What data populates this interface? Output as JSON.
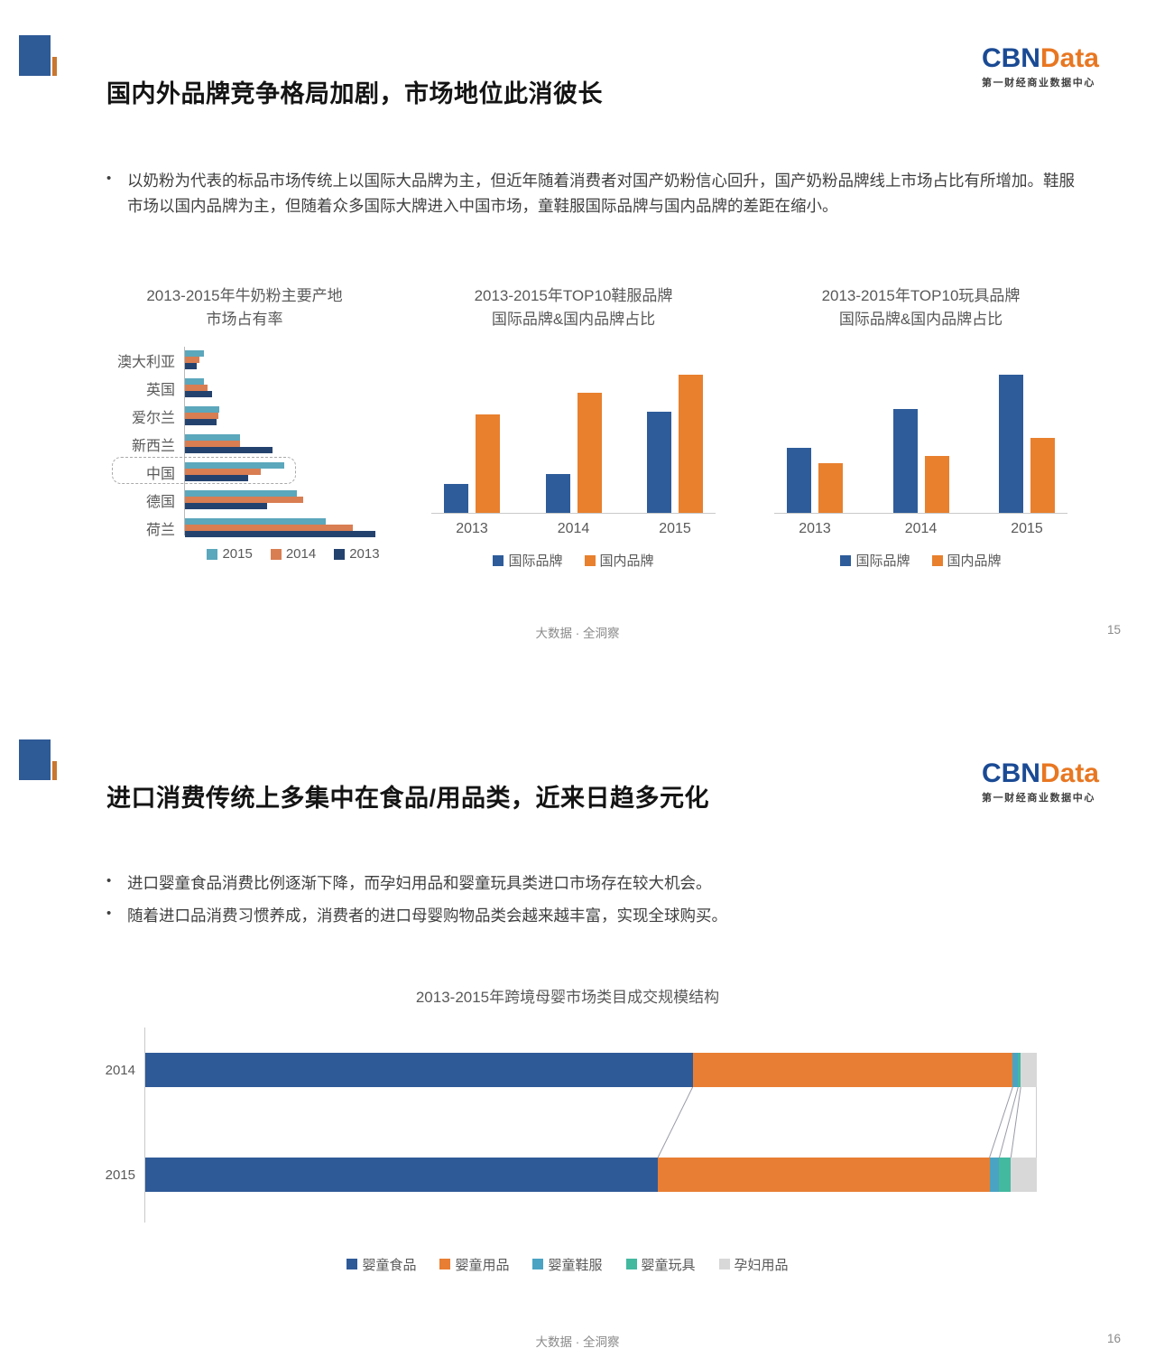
{
  "logo": {
    "cbn": "CBN",
    "data": "Data",
    "subtitle": "第一财经商业数据中心"
  },
  "common": {
    "footer_center": "大数据 · 全洞察"
  },
  "slide15": {
    "title": "国内外品牌竞争格局加剧，市场地位此消彼长",
    "bullets": [
      "以奶粉为代表的标品市场传统上以国际大品牌为主，但近年随着消费者对国产奶粉信心回升，国产奶粉品牌线上市场占比有所增加。鞋服市场以国内品牌为主，但随着众多国际大牌进入中国市场，童鞋服国际品牌与国内品牌的差距在缩小。"
    ],
    "page_number": "15"
  },
  "slide16": {
    "title": "进口消费传统上多集中在食品/用品类，近来日趋多元化",
    "bullets": [
      "进口婴童食品消费比例逐渐下降，而孕妇用品和婴童玩具类进口市场存在较大机会。",
      "随着进口品消费习惯养成，消费者的进口母婴购物品类会越来越丰富，实现全球购买。"
    ],
    "page_number": "16"
  },
  "colors": {
    "logo_blue": "#1A4A94",
    "logo_orange": "#E87722",
    "accent_blue": "#2E5A96",
    "accent_orange": "#C9762F",
    "title_text": "#141414",
    "body_text": "#3F3F3F",
    "chart_text": "#595959",
    "footer_text": "#8A8A8A",
    "axis_gray": "#C9C9C9"
  },
  "chart_data": [
    {
      "id": "milk_powder_origin_share",
      "type": "bar",
      "orientation": "horizontal",
      "title": "2013-2015年牛奶粉主要产地\n市场占有率",
      "categories": [
        "澳大利亚",
        "英国",
        "爱尔兰",
        "新西兰",
        "中国",
        "德国",
        "荷兰"
      ],
      "series": [
        {
          "name": "2015",
          "color": "#5BA7BC",
          "values": [
            10,
            10,
            18,
            29,
            52,
            59,
            74
          ]
        },
        {
          "name": "2014",
          "color": "#D97E52",
          "values": [
            7.5,
            12,
            17.5,
            29,
            40,
            62,
            88
          ]
        },
        {
          "name": "2013",
          "color": "#24426E",
          "values": [
            6,
            14,
            16.5,
            46,
            33,
            43,
            100
          ]
        }
      ],
      "highlight_category": "中国",
      "value_unit": "relative bar length, % of longest bar (no axis values shown)",
      "legend_position": "bottom",
      "grid": false
    },
    {
      "id": "top10_apparel_brands",
      "type": "bar",
      "orientation": "vertical",
      "title": "2013-2015年TOP10鞋服品牌\n国际品牌&国内品牌占比",
      "categories": [
        "2013",
        "2014",
        "2015"
      ],
      "series": [
        {
          "name": "国际品牌",
          "color": "#2E5C9A",
          "values": [
            21,
            28,
            73
          ]
        },
        {
          "name": "国内品牌",
          "color": "#E8802E",
          "values": [
            71,
            87,
            100
          ]
        }
      ],
      "value_unit": "relative bar height, % of tallest bar (no axis values shown)",
      "legend_position": "bottom",
      "grid": false
    },
    {
      "id": "top10_toy_brands",
      "type": "bar",
      "orientation": "vertical",
      "title": "2013-2015年TOP10玩具品牌\n国际品牌&国内品牌占比",
      "categories": [
        "2013",
        "2014",
        "2015"
      ],
      "series": [
        {
          "name": "国际品牌",
          "color": "#2E5C9A",
          "values": [
            47,
            75,
            100
          ]
        },
        {
          "name": "国内品牌",
          "color": "#E8802E",
          "values": [
            36,
            41,
            54
          ]
        }
      ],
      "value_unit": "relative bar height, % of tallest bar (no axis values shown)",
      "legend_position": "bottom",
      "grid": false
    },
    {
      "id": "cross_border_category_structure",
      "type": "bar",
      "orientation": "horizontal",
      "stacked": true,
      "title": "2013-2015年跨境母婴市场类目成交规模结构",
      "categories": [
        "2014",
        "2015"
      ],
      "series": [
        {
          "name": "婴童食品",
          "color": "#2F5A98",
          "values": [
            61.4,
            57.5
          ]
        },
        {
          "name": "婴童用品",
          "color": "#E87E33",
          "values": [
            35.9,
            37.2
          ]
        },
        {
          "name": "婴童鞋服",
          "color": "#4BA3C3",
          "values": [
            0.6,
            1.1
          ]
        },
        {
          "name": "婴童玩具",
          "color": "#43B9A0",
          "values": [
            0.3,
            1.3
          ]
        },
        {
          "name": "孕妇用品",
          "color": "#D8D8D8",
          "values": [
            1.8,
            2.9
          ]
        }
      ],
      "value_unit": "% share of total (estimated from segment widths)",
      "legend_position": "bottom",
      "grid": false
    }
  ]
}
